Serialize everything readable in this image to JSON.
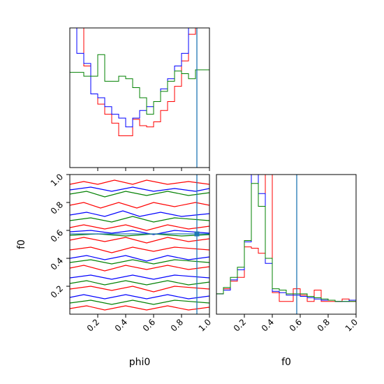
{
  "chart_data": {
    "type": "corner",
    "parameters": [
      "phi0",
      "f0"
    ],
    "axis_labels": {
      "x_left": "phi0",
      "x_right": "f0",
      "y_lower": "f0"
    },
    "ranges": {
      "phi0": [
        0,
        1
      ],
      "f0": [
        0,
        1
      ]
    },
    "ticks": {
      "phi0_x": [
        "0.2",
        "0.4",
        "0.6",
        "0.8",
        "1.0"
      ],
      "f0_x": [
        "0.2",
        "0.4",
        "0.6",
        "0.8",
        "1.0"
      ],
      "f0_y": [
        "0.2",
        "0.4",
        "0.6",
        "0.8",
        "1.0"
      ]
    },
    "truth": {
      "phi0": 0.91,
      "f0": 0.575
    },
    "series_colors": [
      "#ff0000",
      "#0000ff",
      "#008000"
    ],
    "truth_color": "#1f77b4",
    "hist_phi0": {
      "bin_edges": [
        0.0,
        0.05,
        0.1,
        0.15,
        0.2,
        0.25,
        0.3,
        0.35,
        0.4,
        0.45,
        0.5,
        0.55,
        0.6,
        0.65,
        0.7,
        0.75,
        0.8,
        0.85,
        0.9,
        0.95,
        1.0
      ],
      "series": [
        {
          "values": [
            1.1,
            1.1,
            0.8,
            0.58,
            0.5,
            0.42,
            0.35,
            0.25,
            0.25,
            0.38,
            0.33,
            0.32,
            0.36,
            0.45,
            0.52,
            0.64,
            0.84,
            1.05,
            1.1,
            1.1
          ]
        },
        {
          "values": [
            1.1,
            0.9,
            0.82,
            0.58,
            0.55,
            0.48,
            0.42,
            0.39,
            0.32,
            0.39,
            0.45,
            0.48,
            0.52,
            0.62,
            0.7,
            0.8,
            0.9,
            1.1,
            1.1,
            1.1
          ]
        },
        {
          "values": [
            0.75,
            0.75,
            0.72,
            0.72,
            0.89,
            0.68,
            0.68,
            0.72,
            0.7,
            0.63,
            0.55,
            0.42,
            0.52,
            0.6,
            0.68,
            0.76,
            0.74,
            0.7,
            0.77,
            0.77
          ]
        }
      ]
    },
    "hist_f0": {
      "bin_edges": [
        0.0,
        0.05,
        0.1,
        0.15,
        0.2,
        0.25,
        0.3,
        0.35,
        0.4,
        0.45,
        0.5,
        0.55,
        0.6,
        0.65,
        0.7,
        0.75,
        0.8,
        0.85,
        0.9,
        0.95,
        1.0
      ],
      "series": [
        {
          "values": [
            0.16,
            0.2,
            0.26,
            0.29,
            0.53,
            0.52,
            0.48,
            1.1,
            0.17,
            0.1,
            0.1,
            0.2,
            0.15,
            0.1,
            0.19,
            0.1,
            0.1,
            0.1,
            0.12,
            0.1
          ]
        },
        {
          "values": [
            0.16,
            0.19,
            0.27,
            0.35,
            0.57,
            1.1,
            0.95,
            0.4,
            0.18,
            0.17,
            0.15,
            0.15,
            0.14,
            0.13,
            0.12,
            0.11,
            0.11,
            0.1,
            0.1,
            0.11
          ]
        },
        {
          "values": [
            0.16,
            0.21,
            0.29,
            0.37,
            0.58,
            1.03,
            0.85,
            0.44,
            0.2,
            0.19,
            0.16,
            0.16,
            0.16,
            0.14,
            0.13,
            0.12,
            0.11,
            0.1,
            0.1,
            0.1
          ]
        }
      ]
    },
    "contours": [
      {
        "series": 0,
        "points": [
          [
            0.0,
            0.93
          ],
          [
            0.1,
            0.95
          ],
          [
            0.2,
            0.93
          ],
          [
            0.32,
            0.96
          ],
          [
            0.45,
            0.93
          ],
          [
            0.55,
            0.96
          ],
          [
            0.7,
            0.93
          ],
          [
            0.85,
            0.95
          ],
          [
            1.0,
            0.93
          ]
        ]
      },
      {
        "series": 1,
        "points": [
          [
            0.0,
            0.89
          ],
          [
            0.15,
            0.91
          ],
          [
            0.3,
            0.88
          ],
          [
            0.45,
            0.91
          ],
          [
            0.6,
            0.88
          ],
          [
            0.75,
            0.9
          ],
          [
            0.9,
            0.88
          ],
          [
            1.0,
            0.9
          ]
        ]
      },
      {
        "series": 2,
        "points": [
          [
            0.0,
            0.86
          ],
          [
            0.12,
            0.88
          ],
          [
            0.25,
            0.84
          ],
          [
            0.4,
            0.88
          ],
          [
            0.55,
            0.85
          ],
          [
            0.7,
            0.88
          ],
          [
            0.85,
            0.85
          ],
          [
            1.0,
            0.87
          ]
        ]
      },
      {
        "series": 0,
        "points": [
          [
            0.0,
            0.78
          ],
          [
            0.1,
            0.8
          ],
          [
            0.22,
            0.76
          ],
          [
            0.35,
            0.8
          ],
          [
            0.48,
            0.76
          ],
          [
            0.6,
            0.8
          ],
          [
            0.75,
            0.77
          ],
          [
            0.9,
            0.8
          ],
          [
            1.0,
            0.78
          ]
        ]
      },
      {
        "series": 1,
        "points": [
          [
            0.0,
            0.71
          ],
          [
            0.12,
            0.73
          ],
          [
            0.25,
            0.7
          ],
          [
            0.38,
            0.74
          ],
          [
            0.5,
            0.7
          ],
          [
            0.65,
            0.73
          ],
          [
            0.8,
            0.7
          ],
          [
            1.0,
            0.72
          ]
        ]
      },
      {
        "series": 2,
        "points": [
          [
            0.0,
            0.67
          ],
          [
            0.15,
            0.69
          ],
          [
            0.3,
            0.66
          ],
          [
            0.45,
            0.7
          ],
          [
            0.6,
            0.66
          ],
          [
            0.75,
            0.69
          ],
          [
            1.0,
            0.67
          ]
        ]
      },
      {
        "series": 0,
        "points": [
          [
            0.0,
            0.62
          ],
          [
            0.1,
            0.64
          ],
          [
            0.25,
            0.61
          ],
          [
            0.4,
            0.64
          ],
          [
            0.55,
            0.6
          ],
          [
            0.7,
            0.64
          ],
          [
            0.85,
            0.61
          ],
          [
            1.0,
            0.63
          ]
        ]
      },
      {
        "series": 1,
        "points": [
          [
            0.0,
            0.59
          ],
          [
            0.15,
            0.6
          ],
          [
            0.3,
            0.58
          ],
          [
            0.45,
            0.6
          ],
          [
            0.6,
            0.57
          ],
          [
            0.75,
            0.6
          ],
          [
            1.0,
            0.58
          ]
        ]
      },
      {
        "series": 2,
        "points": [
          [
            0.0,
            0.565
          ],
          [
            0.2,
            0.575
          ],
          [
            0.4,
            0.56
          ],
          [
            0.6,
            0.575
          ],
          [
            0.8,
            0.56
          ],
          [
            1.0,
            0.57
          ]
        ]
      },
      {
        "series": 0,
        "points": [
          [
            0.0,
            0.53
          ],
          [
            0.1,
            0.55
          ],
          [
            0.25,
            0.52
          ],
          [
            0.4,
            0.55
          ],
          [
            0.55,
            0.51
          ],
          [
            0.7,
            0.55
          ],
          [
            0.85,
            0.52
          ],
          [
            1.0,
            0.54
          ]
        ]
      },
      {
        "series": 0,
        "points": [
          [
            0.0,
            0.46
          ],
          [
            0.15,
            0.48
          ],
          [
            0.3,
            0.44
          ],
          [
            0.45,
            0.48
          ],
          [
            0.6,
            0.45
          ],
          [
            0.75,
            0.48
          ],
          [
            1.0,
            0.46
          ]
        ]
      },
      {
        "series": 1,
        "points": [
          [
            0.0,
            0.4
          ],
          [
            0.12,
            0.42
          ],
          [
            0.25,
            0.39
          ],
          [
            0.4,
            0.42
          ],
          [
            0.55,
            0.38
          ],
          [
            0.7,
            0.42
          ],
          [
            0.85,
            0.39
          ],
          [
            1.0,
            0.41
          ]
        ]
      },
      {
        "series": 2,
        "points": [
          [
            0.0,
            0.37
          ],
          [
            0.15,
            0.39
          ],
          [
            0.3,
            0.36
          ],
          [
            0.45,
            0.39
          ],
          [
            0.6,
            0.36
          ],
          [
            0.75,
            0.39
          ],
          [
            1.0,
            0.37
          ]
        ]
      },
      {
        "series": 0,
        "points": [
          [
            0.0,
            0.33
          ],
          [
            0.1,
            0.35
          ],
          [
            0.25,
            0.31
          ],
          [
            0.4,
            0.35
          ],
          [
            0.55,
            0.32
          ],
          [
            0.7,
            0.35
          ],
          [
            0.85,
            0.32
          ],
          [
            1.0,
            0.34
          ]
        ]
      },
      {
        "series": 1,
        "points": [
          [
            0.0,
            0.26
          ],
          [
            0.15,
            0.28
          ],
          [
            0.3,
            0.25
          ],
          [
            0.45,
            0.28
          ],
          [
            0.6,
            0.25
          ],
          [
            0.75,
            0.28
          ],
          [
            1.0,
            0.26
          ]
        ]
      },
      {
        "series": 2,
        "points": [
          [
            0.0,
            0.22
          ],
          [
            0.12,
            0.24
          ],
          [
            0.25,
            0.21
          ],
          [
            0.4,
            0.24
          ],
          [
            0.55,
            0.21
          ],
          [
            0.7,
            0.24
          ],
          [
            0.85,
            0.21
          ],
          [
            1.0,
            0.23
          ]
        ]
      },
      {
        "series": 0,
        "points": [
          [
            0.0,
            0.18
          ],
          [
            0.15,
            0.2
          ],
          [
            0.3,
            0.17
          ],
          [
            0.45,
            0.2
          ],
          [
            0.6,
            0.16
          ],
          [
            0.75,
            0.2
          ],
          [
            1.0,
            0.18
          ]
        ]
      },
      {
        "series": 1,
        "points": [
          [
            0.0,
            0.12
          ],
          [
            0.1,
            0.14
          ],
          [
            0.25,
            0.11
          ],
          [
            0.4,
            0.14
          ],
          [
            0.55,
            0.11
          ],
          [
            0.7,
            0.14
          ],
          [
            0.85,
            0.11
          ],
          [
            1.0,
            0.13
          ]
        ]
      },
      {
        "series": 2,
        "points": [
          [
            0.0,
            0.08
          ],
          [
            0.15,
            0.1
          ],
          [
            0.3,
            0.07
          ],
          [
            0.45,
            0.1
          ],
          [
            0.6,
            0.07
          ],
          [
            0.75,
            0.1
          ],
          [
            1.0,
            0.08
          ]
        ]
      },
      {
        "series": 0,
        "points": [
          [
            0.0,
            0.04
          ],
          [
            0.12,
            0.06
          ],
          [
            0.25,
            0.03
          ],
          [
            0.4,
            0.06
          ],
          [
            0.55,
            0.03
          ],
          [
            0.7,
            0.06
          ],
          [
            0.85,
            0.03
          ],
          [
            1.0,
            0.05
          ]
        ]
      }
    ]
  }
}
